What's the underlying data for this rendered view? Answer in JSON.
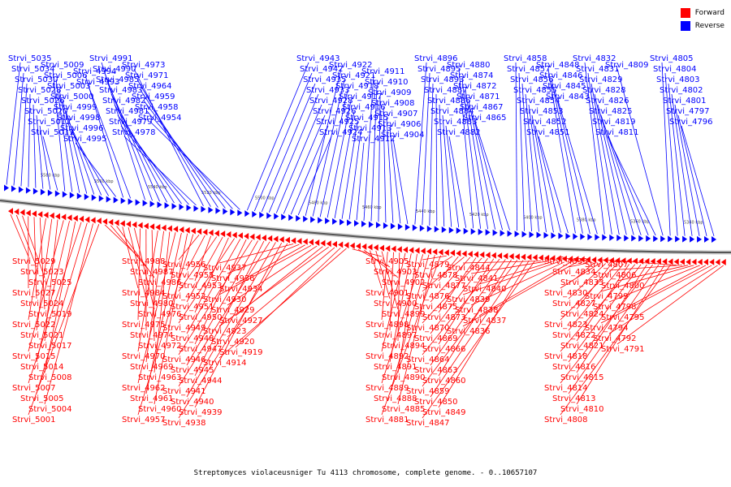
{
  "legend": {
    "forward_label": "Forward",
    "reverse_label": "Reverse",
    "forward_color": "#ff0000",
    "reverse_color": "#0000ff"
  },
  "caption": "Streptomyces violaceusniger Tu 4113 chromosome, complete genome. - 0..10657107",
  "ruler_ticks": [
    "5580 kbp",
    "5560 kbp",
    "5540 kbp",
    "5520 kbp",
    "5500 kbp",
    "5480 kbp",
    "5460 kbp",
    "5440 kbp",
    "5420 kbp",
    "5400 kbp",
    "5380 kbp",
    "5360 kbp",
    "5340 kbp"
  ],
  "reverse_genes": [
    "Strvi_5035",
    "Strvi_5034",
    "Strvi_5030",
    "Strvi_5028",
    "Strvi_5026",
    "Strvi_5020",
    "Strvi_5012",
    "Strvi_5011",
    "Strvi_5009",
    "Strvi_5006",
    "Strvi_5003",
    "Strvi_5000",
    "Strvi_4999",
    "Strvi_4998",
    "Strvi_4996",
    "Strvi_4995",
    "Strvi_4994",
    "Strvi_4993",
    "Strvi_4992",
    "Strvi_4991",
    "Strvi_4990",
    "Strvi_4985",
    "Strvi_4983",
    "Strvi_4982",
    "Strvi_4981",
    "Strvi_4979",
    "Strvi_4978",
    "Strvi_4973",
    "Strvi_4971",
    "Strvi_4964",
    "Strvi_4959",
    "Strvi_4958",
    "Strvi_4954",
    "Strvi_4943",
    "Strvi_4942",
    "Strvi_4935",
    "Strvi_4933",
    "Strvi_4928",
    "Strvi_4926",
    "Strvi_4925",
    "Strvi_4924",
    "Strvi_4922",
    "Strvi_4921",
    "Strvi_4918",
    "Strvi_4917",
    "Strvi_4916",
    "Strvi_4915",
    "Strvi_4913",
    "Strvi_4912",
    "Strvi_4911",
    "Strvi_4910",
    "Strvi_4909",
    "Strvi_4908",
    "Strvi_4907",
    "Strvi_4906",
    "Strvi_4904",
    "Strvi_4896",
    "Strvi_4895",
    "Strvi_4893",
    "Strvi_4887",
    "Strvi_4886",
    "Strvi_4884",
    "Strvi_4883",
    "Strvi_4882",
    "Strvi_4880",
    "Strvi_4874",
    "Strvi_4872",
    "Strvi_4871",
    "Strvi_4867",
    "Strvi_4865",
    "Strvi_4858",
    "Strvi_4857",
    "Strvi_4856",
    "Strvi_4855",
    "Strvi_4854",
    "Strvi_4853",
    "Strvi_4852",
    "Strvi_4851",
    "Strvi_4848",
    "Strvi_4846",
    "Strvi_4845",
    "Strvi_4843",
    "Strvi_4832",
    "Strvi_4831",
    "Strvi_4829",
    "Strvi_4828",
    "Strvi_4826",
    "Strvi_4825",
    "Strvi_4819",
    "Strvi_4811",
    "Strvi_4809",
    "Strvi_4805",
    "Strvi_4804",
    "Strvi_4803",
    "Strvi_4802",
    "Strvi_4801",
    "Strvi_4797",
    "Strvi_4796"
  ],
  "forward_genes": [
    "Strvi_5029",
    "Strvi_5023",
    "Strvi_5025",
    "Strvi_5027",
    "Strvi_5024",
    "Strvi_5019",
    "Strvi_5022",
    "Strvi_5021",
    "Strvi_5017",
    "Strvi_5015",
    "Strvi_5014",
    "Strvi_5008",
    "Strvi_5007",
    "Strvi_5005",
    "Strvi_5004",
    "Strvi_5001",
    "Strvi_4988",
    "Strvi_4987",
    "Strvi_4986",
    "Strvi_4984",
    "Strvi_4980",
    "Strvi_4976",
    "Strvi_4975",
    "Strvi_4974",
    "Strvi_4972",
    "Strvi_4970",
    "Strvi_4969",
    "Strvi_4963",
    "Strvi_4962",
    "Strvi_4961",
    "Strvi_4960",
    "Strvi_4957",
    "Strvi_4956",
    "Strvi_4955",
    "Strvi_4953",
    "Strvi_4952",
    "Strvi_4951",
    "Strvi_4950",
    "Strvi_4949",
    "Strvi_4948",
    "Strvi_4947",
    "Strvi_4946",
    "Strvi_4945",
    "Strvi_4944",
    "Strvi_4941",
    "Strvi_4940",
    "Strvi_4939",
    "Strvi_4938",
    "Strvi_4937",
    "Strvi_4936",
    "Strvi_4934",
    "Strvi_4930",
    "Strvi_4929",
    "Strvi_4927",
    "Strvi_4923",
    "Strvi_4920",
    "Strvi_4919",
    "Strvi_4914",
    "Strvi_4905",
    "Strvi_4903",
    "Strvi_4902",
    "Strvi_4901",
    "Strvi_4900",
    "Strvi_4899",
    "Strvi_4898",
    "Strvi_4897",
    "Strvi_4894",
    "Strvi_4892",
    "Strvi_4891",
    "Strvi_4890",
    "Strvi_4889",
    "Strvi_4888",
    "Strvi_4885",
    "Strvi_4881",
    "Strvi_4879",
    "Strvi_4878",
    "Strvi_4877",
    "Strvi_4876",
    "Strvi_4875",
    "Strvi_4873",
    "Strvi_4870",
    "Strvi_4869",
    "Strvi_4866",
    "Strvi_4864",
    "Strvi_4863",
    "Strvi_4860",
    "Strvi_4859",
    "Strvi_4850",
    "Strvi_4849",
    "Strvi_4847",
    "Strvi_4844",
    "Strvi_4841",
    "Strvi_4840",
    "Strvi_4839",
    "Strvi_4838",
    "Strvi_4837",
    "Strvi_4836",
    "Strvi_4835",
    "Strvi_4834",
    "Strvi_4833",
    "Strvi_4830",
    "Strvi_4827",
    "Strvi_4824",
    "Strvi_4823",
    "Strvi_4822",
    "Strvi_4821",
    "Strvi_4818",
    "Strvi_4816",
    "Strvi_4815",
    "Strvi_4814",
    "Strvi_4813",
    "Strvi_4810",
    "Strvi_4808",
    "Strvi_4807",
    "Strvi_4806",
    "Strvi_4800",
    "Strvi_4799",
    "Strvi_4798",
    "Strvi_4795",
    "Strvi_4794",
    "Strvi_4792",
    "Strvi_4791"
  ]
}
